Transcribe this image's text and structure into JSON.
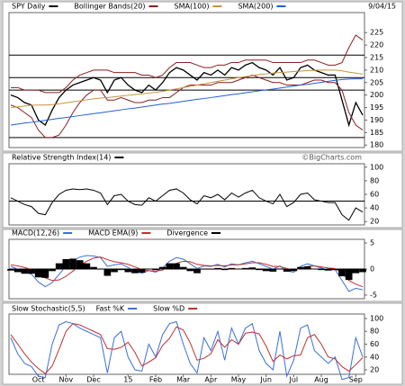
{
  "chart_data": [
    {
      "type": "line",
      "date": "9/04/15",
      "categories": [
        null,
        null,
        null,
        null,
        "Oct",
        null,
        null,
        null,
        "Nov",
        null,
        null,
        null,
        "Dec",
        null,
        null,
        null,
        null,
        "15",
        null,
        null,
        null,
        "Feb",
        null,
        null,
        null,
        "Mar",
        null,
        null,
        null,
        "Apr",
        null,
        null,
        null,
        "May",
        null,
        null,
        null,
        "Jun",
        null,
        null,
        null,
        "Jul",
        null,
        null,
        null,
        "Aug",
        null,
        null,
        null,
        null,
        "Sep",
        null
      ],
      "series": [
        {
          "name": "SPY Daily",
          "color": "#000000",
          "values": [
            200,
            199,
            197,
            196,
            190,
            188,
            194,
            199,
            202,
            204,
            205,
            206,
            207,
            206,
            201,
            206,
            207,
            204,
            202,
            201,
            204,
            202,
            205,
            209,
            211,
            210,
            208,
            206,
            209,
            208,
            210,
            208,
            211,
            210,
            212,
            213,
            211,
            210,
            208,
            211,
            206,
            207,
            211,
            212,
            210,
            209,
            208,
            208,
            198,
            188,
            197,
            192
          ]
        },
        {
          "name": "Bollinger Bands(20)",
          "color": "#8b1f1f",
          "values": [
            203,
            203,
            202,
            202,
            202,
            201,
            201,
            201,
            203,
            206,
            208,
            209,
            210,
            210,
            210,
            209,
            209,
            209,
            209,
            208,
            208,
            207,
            208,
            211,
            213,
            213,
            213,
            212,
            211,
            211,
            212,
            212,
            213,
            213,
            214,
            214,
            214,
            214,
            213,
            213,
            213,
            213,
            213,
            214,
            214,
            213,
            212,
            212,
            213,
            219,
            224,
            222
          ],
          "lower": [
            196,
            195,
            193,
            191,
            186,
            183,
            183,
            184,
            188,
            193,
            197,
            200,
            202,
            202,
            198,
            198,
            199,
            198,
            197,
            197,
            198,
            198,
            199,
            199,
            201,
            203,
            204,
            204,
            204,
            204,
            205,
            205,
            205,
            206,
            207,
            208,
            207,
            206,
            205,
            205,
            204,
            204,
            204,
            205,
            206,
            206,
            205,
            205,
            202,
            193,
            188,
            186
          ]
        },
        {
          "name": "SMA(100)",
          "color": "#c8943c",
          "values": [
            195,
            195.3,
            195.6,
            195.9,
            196,
            196,
            196.2,
            196.5,
            196.9,
            197.3,
            197.7,
            198.1,
            198.5,
            198.8,
            199,
            199.3,
            199.6,
            199.9,
            200.2,
            200.5,
            200.8,
            201.1,
            201.5,
            202,
            202.5,
            203,
            203.5,
            204,
            204.5,
            205,
            205.5,
            206,
            206.5,
            207,
            207.4,
            207.8,
            208.2,
            208.5,
            208.8,
            209,
            209.2,
            209.4,
            209.6,
            209.8,
            209.9,
            210,
            210,
            210,
            209.7,
            209.2,
            208.8,
            208.4
          ]
        },
        {
          "name": "SMA(200)",
          "color": "#1f5fd6",
          "values": [
            188,
            188.4,
            188.8,
            189.1,
            189.5,
            189.9,
            190.3,
            190.7,
            191,
            191.4,
            191.8,
            192.2,
            192.6,
            192.9,
            193.3,
            193.7,
            194.1,
            194.5,
            194.8,
            195.2,
            195.6,
            196,
            196.4,
            196.7,
            197.1,
            197.5,
            197.9,
            198.3,
            198.6,
            199,
            199.4,
            199.8,
            200.2,
            200.5,
            200.9,
            201.3,
            201.7,
            202.1,
            202.4,
            202.8,
            203.2,
            203.6,
            204,
            204.3,
            204.7,
            205.1,
            205.5,
            205.9,
            206.2,
            206.4,
            206.5,
            206.5
          ]
        }
      ],
      "reference_lines": [
        216,
        207,
        202,
        183
      ],
      "ylim": [
        179,
        233
      ],
      "yticks": [
        180,
        185,
        190,
        195,
        200,
        205,
        210,
        215,
        220,
        225
      ]
    },
    {
      "type": "line",
      "credit": "©BigCharts.com",
      "series": [
        {
          "name": "Relative Strength Index(14)",
          "color": "#000000",
          "values": [
            55,
            50,
            45,
            42,
            32,
            30,
            48,
            60,
            66,
            68,
            67,
            68,
            66,
            62,
            45,
            58,
            60,
            50,
            45,
            44,
            55,
            50,
            58,
            66,
            68,
            62,
            52,
            46,
            58,
            55,
            60,
            52,
            62,
            56,
            62,
            66,
            55,
            50,
            46,
            60,
            42,
            48,
            60,
            62,
            52,
            50,
            48,
            48,
            30,
            22,
            40,
            34
          ]
        }
      ],
      "reference_lines": [
        50
      ],
      "ylim": [
        15,
        105
      ],
      "yticks": [
        20,
        40,
        60,
        80,
        100
      ]
    },
    {
      "type": "line",
      "series": [
        {
          "name": "MACD(12,26)",
          "color": "#3a6fd8",
          "values": [
            0.5,
            0,
            -0.6,
            -1,
            -2.5,
            -3.4,
            -2.6,
            -1,
            0.5,
            1.6,
            2.3,
            2.6,
            2.5,
            2.2,
            0.5,
            0.8,
            1,
            0.3,
            -0.4,
            -0.8,
            -0.3,
            -0.6,
            0.2,
            1.5,
            2.2,
            1.9,
            1,
            0.1,
            0.6,
            0.5,
            0.9,
            0.4,
            1,
            0.8,
            1.2,
            1.5,
            1,
            0.5,
            0,
            0.6,
            -0.4,
            -0.6,
            0.5,
            1,
            0.6,
            0.2,
            -0.1,
            -0.1,
            -2.2,
            -4.3,
            -3.7,
            -4
          ]
        },
        {
          "name": "MACD EMA(9)",
          "color": "#c03030",
          "values": [
            0.8,
            0.6,
            0.3,
            -0.1,
            -0.9,
            -1.7,
            -2.2,
            -2.1,
            -1.4,
            -0.4,
            0.6,
            1.5,
            2.1,
            2.3,
            1.8,
            1.4,
            1.2,
            0.9,
            0.4,
            -0.1,
            -0.3,
            -0.4,
            -0.2,
            0.4,
            1.1,
            1.5,
            1.4,
            0.9,
            0.7,
            0.6,
            0.7,
            0.6,
            0.8,
            0.8,
            1,
            1.2,
            1.2,
            0.9,
            0.5,
            0.5,
            0.1,
            -0.2,
            0.1,
            0.5,
            0.6,
            0.4,
            0.2,
            0.1,
            -0.8,
            -2.2,
            -2.9,
            -3.4
          ]
        },
        {
          "name": "Divergence",
          "color": "#000000",
          "kind": "bar",
          "values": [
            -0.3,
            -0.6,
            -0.9,
            -0.9,
            -1.6,
            -1.7,
            -0.4,
            1.1,
            1.9,
            2,
            1.7,
            1.1,
            0.4,
            -0.1,
            -1.3,
            -0.6,
            -0.2,
            -0.6,
            -0.8,
            -0.7,
            0,
            -0.2,
            0.4,
            1.1,
            1.1,
            0.4,
            -0.4,
            -0.8,
            -0.1,
            -0.1,
            0.2,
            -0.2,
            0.2,
            0,
            0.2,
            0.3,
            -0.2,
            -0.4,
            -0.5,
            0.1,
            -0.5,
            -0.4,
            0.4,
            0.5,
            0,
            -0.2,
            -0.3,
            -0.2,
            -1.4,
            -2.1,
            -0.8,
            -0.6
          ]
        }
      ],
      "reference_lines": [
        0
      ],
      "ylim": [
        -5.7,
        5.7
      ],
      "yticks": [
        5,
        0,
        -5
      ]
    },
    {
      "type": "line",
      "title": "Slow Stochastic(5,5)",
      "series": [
        {
          "name": "Fast %K",
          "color": "#3a6fd8",
          "values": [
            70,
            45,
            30,
            25,
            10,
            8,
            60,
            90,
            95,
            92,
            85,
            80,
            75,
            70,
            15,
            70,
            80,
            40,
            20,
            18,
            60,
            40,
            75,
            92,
            95,
            60,
            30,
            15,
            70,
            50,
            80,
            35,
            85,
            60,
            85,
            92,
            50,
            30,
            20,
            80,
            10,
            35,
            85,
            90,
            50,
            40,
            30,
            40,
            5,
            8,
            70,
            40
          ]
        },
        {
          "name": "Slow %D",
          "color": "#c03030",
          "values": [
            75,
            60,
            45,
            32,
            22,
            14,
            26,
            52,
            80,
            92,
            90,
            85,
            80,
            75,
            53,
            52,
            55,
            63,
            47,
            26,
            32,
            39,
            58,
            69,
            87,
            82,
            62,
            35,
            38,
            45,
            67,
            55,
            67,
            60,
            77,
            79,
            76,
            57,
            33,
            43,
            37,
            42,
            43,
            70,
            75,
            60,
            40,
            37,
            25,
            18,
            28,
            39
          ]
        }
      ],
      "ylim": [
        13,
        107
      ],
      "yticks": [
        20,
        40,
        60,
        80,
        100
      ]
    }
  ]
}
